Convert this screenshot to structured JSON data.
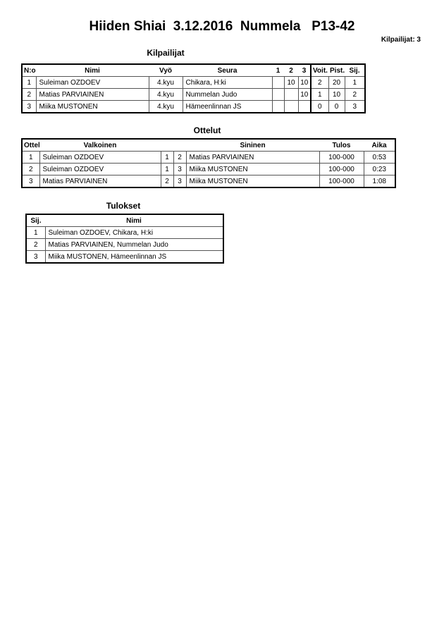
{
  "header": {
    "title": "Hiiden Shiai  3.12.2016  Nummela   P13-42",
    "competitor_count": "Kilpailijat: 3"
  },
  "competitors": {
    "title": "Kilpailijat",
    "columns": [
      "N:o",
      "Nimi",
      "Vyö",
      "Seura",
      "1",
      "2",
      "3",
      "Voit.",
      "Pist.",
      "Sij."
    ],
    "rows": [
      [
        "1",
        "Suleiman OZDOEV",
        "4.kyu",
        "Chikara, H:ki",
        "",
        "10",
        "10",
        "2",
        "20",
        "1"
      ],
      [
        "2",
        "Matias PARVIAINEN",
        "4.kyu",
        "Nummelan Judo",
        "",
        "",
        "10",
        "1",
        "10",
        "2"
      ],
      [
        "3",
        "Miika MUSTONEN",
        "4.kyu",
        "Hämeenlinnan JS",
        "",
        "",
        "",
        "0",
        "0",
        "3"
      ]
    ]
  },
  "matches": {
    "title": "Ottelut",
    "columns": [
      "Ottelu",
      "Valkoinen",
      "",
      "",
      "Sininen",
      "Tulos",
      "Aika"
    ],
    "rows": [
      [
        "1",
        "Suleiman OZDOEV",
        "1",
        "2",
        "Matias PARVIAINEN",
        "100-000",
        "0:53"
      ],
      [
        "2",
        "Suleiman OZDOEV",
        "1",
        "3",
        "Miika MUSTONEN",
        "100-000",
        "0:23"
      ],
      [
        "3",
        "Matias PARVIAINEN",
        "2",
        "3",
        "Miika MUSTONEN",
        "100-000",
        "1:08"
      ]
    ]
  },
  "results": {
    "title": "Tulokset",
    "columns": [
      "Sij.",
      "Nimi"
    ],
    "rows": [
      [
        "1",
        "Suleiman OZDOEV, Chikara, H:ki"
      ],
      [
        "2",
        "Matias PARVIAINEN, Nummelan Judo"
      ],
      [
        "3",
        "Miika MUSTONEN, Hämeenlinnan JS"
      ]
    ]
  }
}
